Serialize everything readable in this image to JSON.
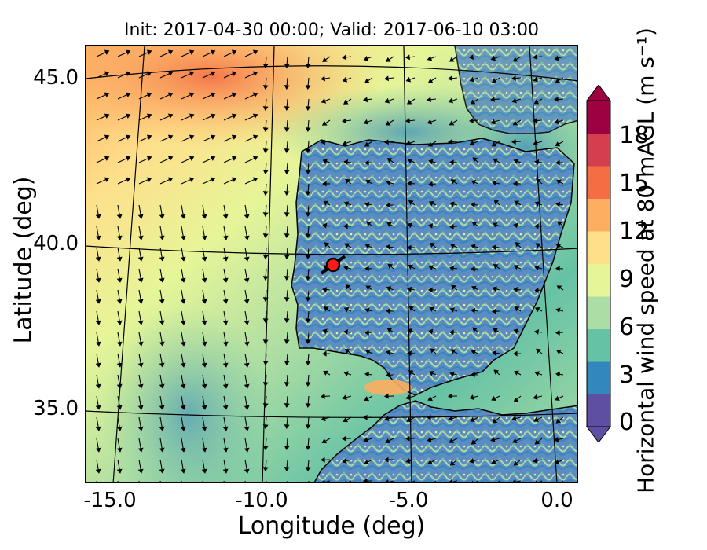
{
  "title": "Init: 2017-04-30 00:00; Valid: 2017-06-10 03:00",
  "axes": {
    "xlabel": "Longitude (deg)",
    "ylabel": "Latitude (deg)",
    "xticks": [
      "-15.0",
      "-10.0",
      "-5.0",
      "0.0"
    ],
    "yticks": [
      "45.0",
      "40.0",
      "35.0"
    ]
  },
  "colorbar": {
    "label": "Horizontal wind speed at 80 mAGL (m s⁻¹)",
    "ticks": [
      "0",
      "3",
      "6",
      "9",
      "12",
      "15",
      "18"
    ],
    "range": [
      0,
      20
    ],
    "extend": "both",
    "colormap": [
      "#5e4fa2",
      "#3288bd",
      "#66c2a5",
      "#abdda4",
      "#e6f598",
      "#fee08b",
      "#fdae61",
      "#f46d43",
      "#d53e4f",
      "#9e0142"
    ]
  },
  "marker": {
    "name": "site",
    "lon": -7.6,
    "lat": 39.4,
    "fill": "#ff1a1a",
    "edge": "#000000"
  },
  "map": {
    "lon_range": [
      -16.0,
      0.3
    ],
    "lat_range": [
      32.8,
      46.0
    ],
    "region": "Iberian Peninsula",
    "vector_field": "wind arrows"
  }
}
